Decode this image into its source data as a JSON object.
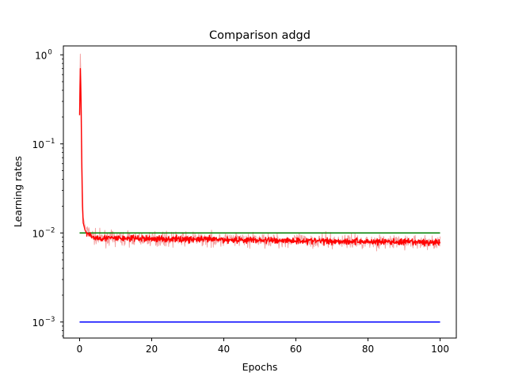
{
  "chart_data": {
    "type": "line",
    "title": "Comparison adgd",
    "xlabel": "Epochs",
    "ylabel": "Learning rates",
    "xlim": [
      -4.5,
      104.5
    ],
    "ylim_log10": [
      -3.18,
      0.1
    ],
    "yscale": "log",
    "grid": false,
    "x_ticks": [
      {
        "value": 0,
        "label": "0"
      },
      {
        "value": 20,
        "label": "20"
      },
      {
        "value": 40,
        "label": "40"
      },
      {
        "value": 60,
        "label": "60"
      },
      {
        "value": 80,
        "label": "80"
      },
      {
        "value": 100,
        "label": "100"
      }
    ],
    "y_ticks": [
      {
        "value": 0.001,
        "base": "10",
        "exp": "−3"
      },
      {
        "value": 0.01,
        "base": "10",
        "exp": "−2"
      },
      {
        "value": 0.1,
        "base": "10",
        "exp": "−1"
      },
      {
        "value": 1,
        "base": "10",
        "exp": "0"
      }
    ],
    "series": [
      {
        "color": "#0000ff",
        "x": [
          0,
          100
        ],
        "y": [
          0.001,
          0.001
        ]
      },
      {
        "color": "#008000",
        "x": [
          0,
          100
        ],
        "y": [
          0.01,
          0.01
        ]
      },
      {
        "color": "#f4a3a3",
        "kind": "raw",
        "x": [
          0,
          0.2,
          0.4,
          0.6,
          0.8,
          1,
          1.5,
          2,
          3,
          4,
          5,
          10,
          20,
          30,
          40,
          50,
          60,
          70,
          80,
          90,
          100
        ],
        "y": [
          0.3,
          1.02,
          0.5,
          0.1,
          0.03,
          0.015,
          0.012,
          0.011,
          0.0095,
          0.009,
          0.0088,
          0.0087,
          0.0086,
          0.0085,
          0.0084,
          0.0083,
          0.0082,
          0.0081,
          0.008,
          0.0079,
          0.0078
        ]
      },
      {
        "color": "#ff0000",
        "kind": "smoothed",
        "x": [
          0,
          0.2,
          0.4,
          0.6,
          0.8,
          1,
          1.5,
          2,
          3,
          4,
          5,
          10,
          20,
          30,
          40,
          50,
          60,
          70,
          80,
          90,
          100
        ],
        "y": [
          0.21,
          0.7,
          0.3,
          0.06,
          0.02,
          0.013,
          0.0108,
          0.0098,
          0.0092,
          0.0089,
          0.0088,
          0.0087,
          0.0086,
          0.0085,
          0.0084,
          0.0083,
          0.0082,
          0.0081,
          0.008,
          0.0079,
          0.0078
        ]
      }
    ]
  }
}
